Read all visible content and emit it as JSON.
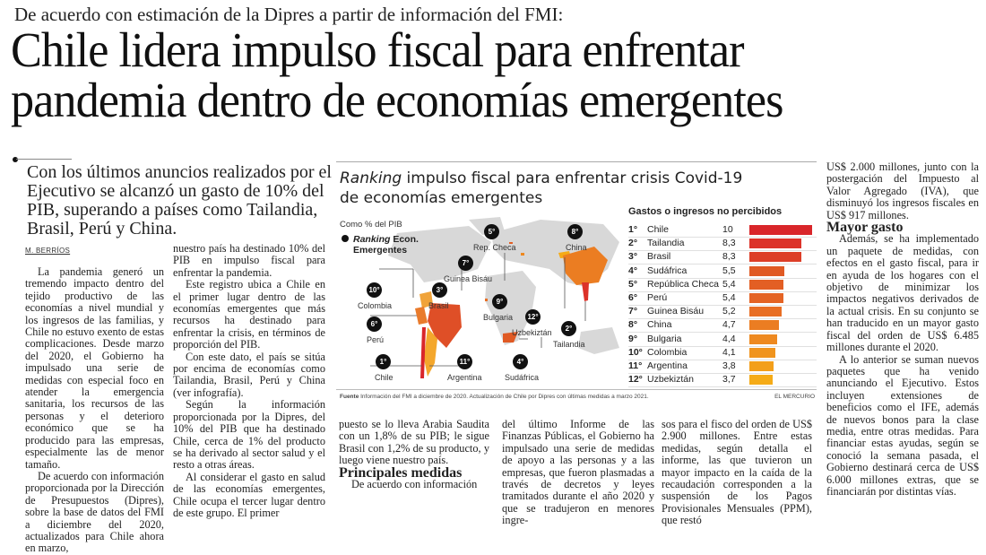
{
  "kicker": "De acuerdo con estimación de la Dipres a partir de información del FMI:",
  "headline": {
    "line1": "Chile lidera impulso fiscal para enfrentar",
    "line2": "pandemia dentro de economías emergentes"
  },
  "deck": "Con los últimos anuncios realizados por el Ejecutivo se alcanzó un gasto de 10% del PIB, superando a países como Tailandia, Brasil, Perú y China.",
  "byline": "M. BERRÍOS",
  "body": {
    "col1": [
      "La pandemia generó un tremendo impacto dentro del tejido productivo de las economías a nivel mundial y los ingresos de las familias, y Chile no estuvo exento de estas complicaciones. Desde marzo del 2020, el Gobierno ha impulsado una serie de medidas con especial foco en atender la emergencia sanitaria, los recursos de las personas y el deterioro económico que se ha producido para las empresas, especialmente las de menor tamaño.",
      "De acuerdo con información proporcionada por la Dirección de Presupuestos (Dipres), sobre la base de datos del FMI a diciembre del 2020, actualizados para Chile ahora en marzo,"
    ],
    "col2": [
      "nuestro país ha destinado 10% del PIB en impulso fiscal para enfrentar la pandemia.",
      "Este registro ubica a Chile en el primer lugar dentro de las economías emergentes que más recursos ha destinado para enfrentar la crisis, en términos de proporción del PIB.",
      "Con este dato, el país se sitúa por encima de economías como Tailandia, Brasil, Perú y China (ver infografía).",
      "Según la información proporcionada por la Dipres, del 10% del PIB que ha destinado Chile, cerca de 1% del producto se ha derivado al sector salud y el resto a otras áreas.",
      "Al considerar el gasto en salud de las economías emergentes, Chile ocupa el tercer lugar dentro de este grupo. El primer"
    ],
    "col3": [
      "puesto se lo lleva Arabia Saudita con un 1,8% de su PIB; le sigue Brasil con 1,2% de su producto, y luego viene nuestro país."
    ],
    "subhead1": "Principales medidas",
    "col3b": [
      "De acuerdo con información"
    ],
    "col4": [
      "del último Informe de las Finanzas Públicas, el Gobierno ha impulsado una serie de medidas de apoyo a las personas y a las empresas, que fueron plasmadas a través de decretos y leyes tramitados durante el año 2020 y que se tradujeron en menores ingre-"
    ],
    "col5": [
      "sos para el fisco del orden de US$ 2.900 millones. Entre estas medidas, según detalla el informe, las que tuvieron un mayor impacto en la caída de la recaudación corresponden a la suspensión de los Pagos Provisionales Mensuales (PPM), que restó"
    ],
    "col6": [
      "US$ 2.000 millones, junto con la postergación del Impuesto al Valor Agregado (IVA), que disminuyó los ingresos fiscales en US$ 917 millones."
    ],
    "subhead2": "Mayor gasto",
    "col6b": [
      "Además, se ha implementado un paquete de medidas, con efectos en el gasto fiscal, para ir en ayuda de los hogares con el objetivo de minimizar los impactos negativos derivados de la actual crisis. En su conjunto se han traducido en un mayor gasto fiscal del orden de US$ 6.485 millones durante el 2020.",
      "A lo anterior se suman nuevos paquetes que ha venido anunciando el Ejecutivo. Estos incluyen extensiones de beneficios como el IFE, además de nuevos bonos para la clase media, entre otras medidas. Para financiar estas ayudas, según se conoció la semana pasada, el Gobierno destinará cerca de US$ 6.000 millones extras, que se financiarán por distintas vías."
    ]
  },
  "infographic": {
    "title_italic": "Ranking",
    "title_rest": " impulso fiscal para enfrentar crisis Covid-19",
    "title_line2": "de economías emergentes",
    "subtitle": "Como % del PIB",
    "legend_italic": "Ranking",
    "legend_rest": " Econ.",
    "legend_line2": "Emergentes",
    "map_labels": [
      {
        "rank": "5°",
        "name": "Rep. Checa"
      },
      {
        "rank": "8°",
        "name": "China"
      },
      {
        "rank": "7°",
        "name": "Guinea Bisáu"
      },
      {
        "rank": "10°",
        "name": "Colombia"
      },
      {
        "rank": "3°",
        "name": "Brasil"
      },
      {
        "rank": "9°",
        "name": "Bulgaria"
      },
      {
        "rank": "6°",
        "name": "Perú"
      },
      {
        "rank": "12°",
        "name": "Uzbekiztán"
      },
      {
        "rank": "2°",
        "name": "Tailandia"
      },
      {
        "rank": "1°",
        "name": "Chile"
      },
      {
        "rank": "11°",
        "name": "Argentina"
      },
      {
        "rank": "4°",
        "name": "Sudáfrica"
      }
    ],
    "source_label": "Fuente",
    "source_text": " Información del FMI a diciembre de 2020. Actualización de Chile por Dipres con últimas medidas a marzo 2021.",
    "brand": "EL MERCURIO",
    "bar_colors": [
      "#d9262a",
      "#dc3229",
      "#dd3e27",
      "#e05a24",
      "#e35f24",
      "#e46324",
      "#e86e24",
      "#eb7d22",
      "#ee8920",
      "#f0941e",
      "#f39f1b",
      "#f5ab17"
    ]
  },
  "chart_data": {
    "type": "bar",
    "title": "Gastos o ingresos no percibidos",
    "ranks": [
      "1°",
      "2°",
      "3°",
      "4°",
      "5°",
      "6°",
      "7°",
      "8°",
      "9°",
      "10°",
      "11°",
      "12°"
    ],
    "categories": [
      "Chile",
      "Tailandia",
      "Brasil",
      "Sudáfrica",
      "República Checa",
      "Perú",
      "Guinea Bisáu",
      "China",
      "Bulgaria",
      "Colombia",
      "Argentina",
      "Uzbekiztán"
    ],
    "value_labels": [
      "10",
      "8,3",
      "8,3",
      "5,5",
      "5,4",
      "5,4",
      "5,2",
      "4,7",
      "4,4",
      "4,1",
      "3,8",
      "3,7"
    ],
    "values": [
      10,
      8.3,
      8.3,
      5.5,
      5.4,
      5.4,
      5.2,
      4.7,
      4.4,
      4.1,
      3.8,
      3.7
    ],
    "xlabel": "",
    "ylabel": "Como % del PIB",
    "xlim": [
      0,
      10
    ]
  }
}
